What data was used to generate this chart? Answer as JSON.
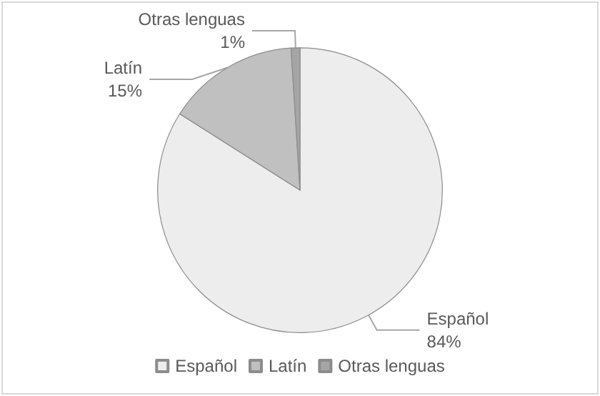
{
  "chart_data": {
    "type": "pie",
    "categories": [
      "Español",
      "Latín",
      "Otras lenguas"
    ],
    "values": [
      84,
      15,
      1
    ],
    "colors": [
      "#ededed",
      "#c0c0c0",
      "#a5a5a5"
    ],
    "value_labels": [
      "84%",
      "15%",
      "1%"
    ],
    "legend": "bottom"
  }
}
